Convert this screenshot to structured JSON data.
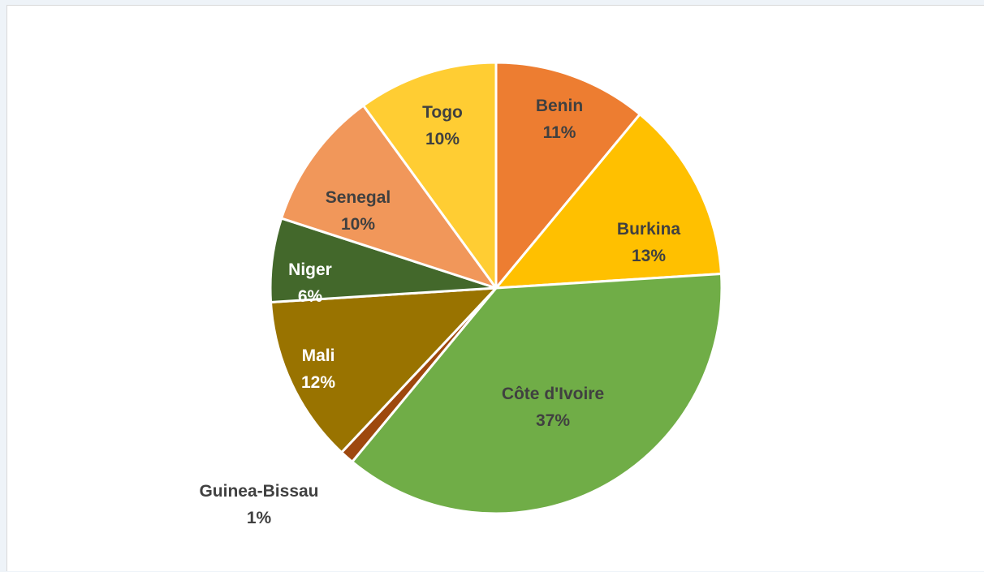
{
  "chart_data": {
    "type": "pie",
    "title": "",
    "slices": [
      {
        "name": "Benin",
        "value": 11,
        "label": "11%",
        "color": "#ED7D31",
        "label_color": "#404040"
      },
      {
        "name": "Burkina",
        "value": 13,
        "label": "13%",
        "color": "#FFC000",
        "label_color": "#404040"
      },
      {
        "name": "Côte d'Ivoire",
        "value": 37,
        "label": "37%",
        "color": "#70AD47",
        "label_color": "#404040"
      },
      {
        "name": "Guinea-Bissau",
        "value": 1,
        "label": "1%",
        "color": "#9E480E",
        "label_color": "#404040"
      },
      {
        "name": "Mali",
        "value": 12,
        "label": "12%",
        "color": "#997300",
        "label_color": "#ffffff"
      },
      {
        "name": "Niger",
        "value": 6,
        "label": "6%",
        "color": "#43682B",
        "label_color": "#ffffff"
      },
      {
        "name": "Senegal",
        "value": 10,
        "label": "10%",
        "color": "#F1975A",
        "label_color": "#404040"
      },
      {
        "name": "Togo",
        "value": 10,
        "label": "10%",
        "color": "#FFCD33",
        "label_color": "#404040"
      }
    ],
    "start_angle_deg": 0,
    "direction": "clockwise",
    "legend": "none",
    "data_labels": "category-and-percent"
  }
}
